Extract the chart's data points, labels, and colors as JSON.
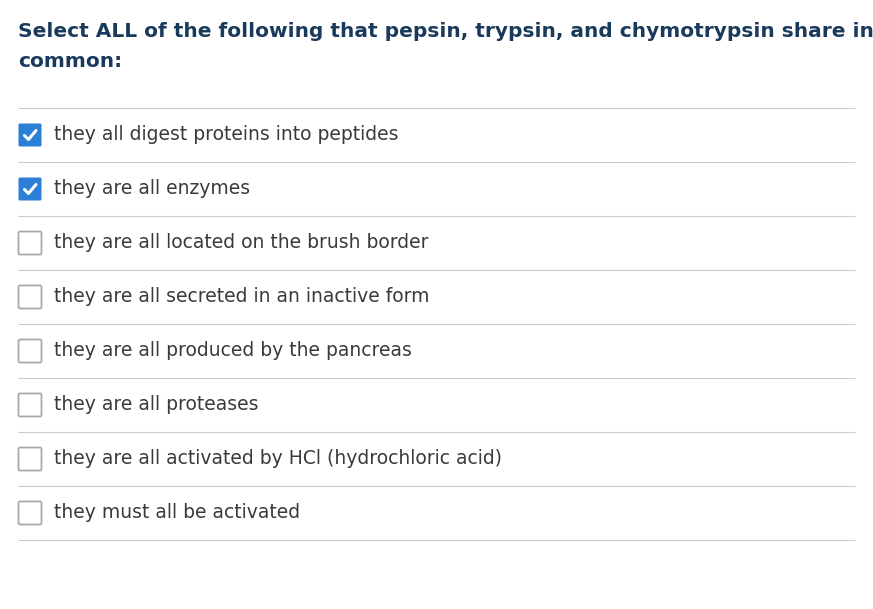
{
  "title_line1": "Select ALL of the following that pepsin, trypsin, and chymotrypsin share in",
  "title_line2": "common:",
  "title_color": "#1a3a5c",
  "title_fontsize": 14.5,
  "background_color": "#ffffff",
  "options": [
    {
      "text": "they all digest proteins into peptides",
      "checked": true
    },
    {
      "text": "they are all enzymes",
      "checked": true
    },
    {
      "text": "they are all located on the brush border",
      "checked": false
    },
    {
      "text": "they are all secreted in an inactive form",
      "checked": false
    },
    {
      "text": "they are all produced by the pancreas",
      "checked": false
    },
    {
      "text": "they are all proteases",
      "checked": false
    },
    {
      "text": "they are all activated by HCl (hydrochloric acid)",
      "checked": false
    },
    {
      "text": "they must all be activated",
      "checked": false
    }
  ],
  "checked_box_color": "#2b7fd4",
  "checked_check_color": "#ffffff",
  "unchecked_box_color": "#ffffff",
  "unchecked_border_color": "#aaaaaa",
  "text_color": "#3a3a3a",
  "option_fontsize": 13.5,
  "divider_color": "#cccccc",
  "divider_linewidth": 0.8,
  "fig_width": 8.73,
  "fig_height": 6.09,
  "dpi": 100
}
